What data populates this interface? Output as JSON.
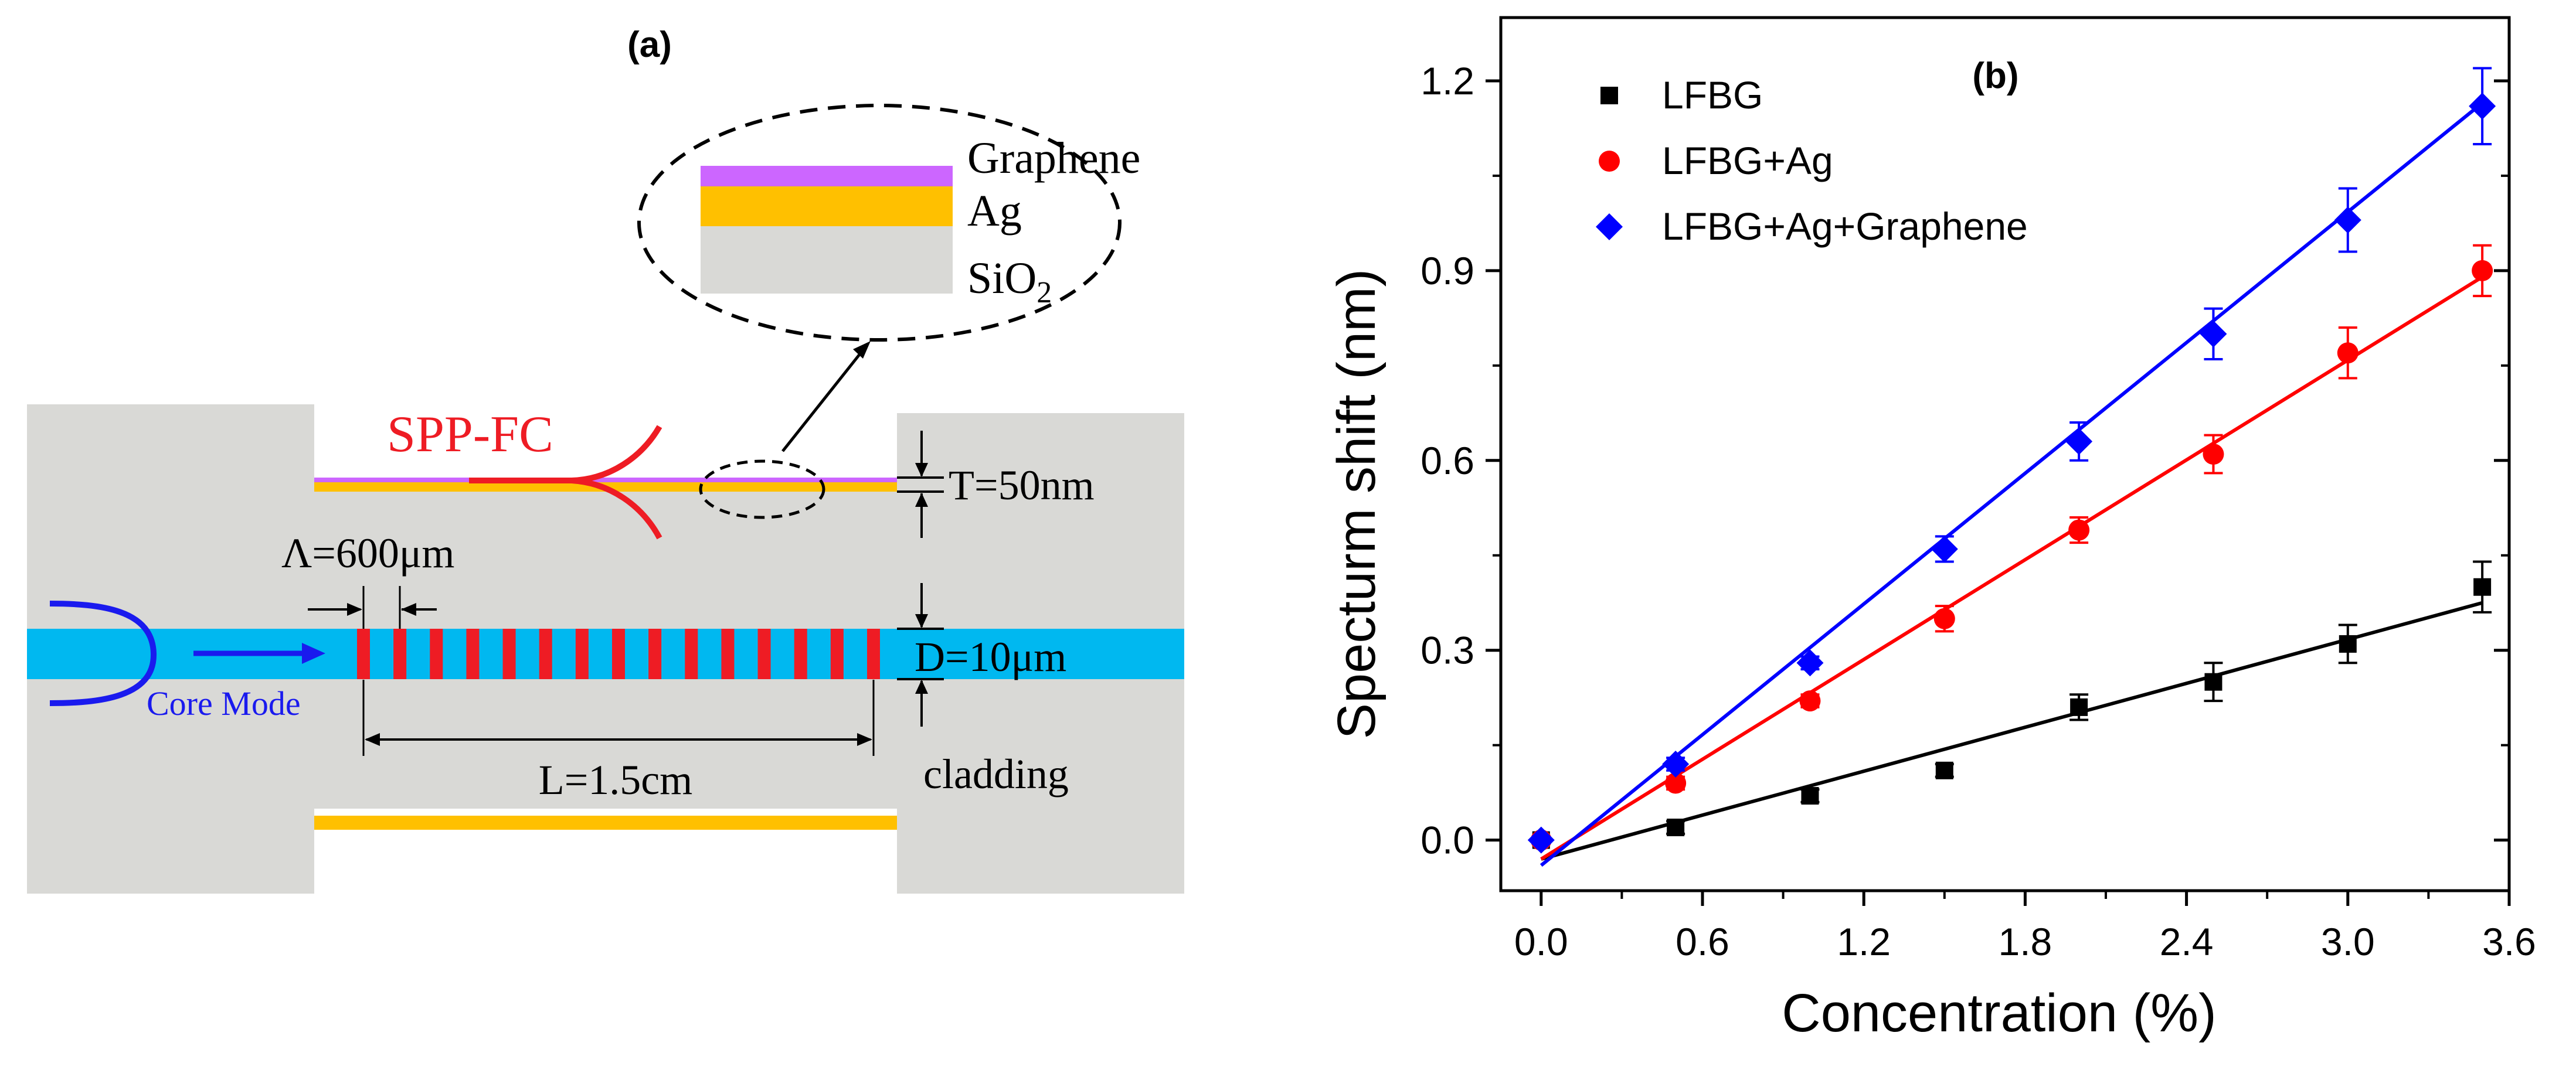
{
  "panel_a": {
    "panel_label": "(a)",
    "layers": {
      "graphene": "Graphene",
      "ag": "Ag",
      "sio2_base": "SiO",
      "sio2_sub": "2"
    },
    "spp_label": "SPP-FC",
    "thickness_label": "T=50nm",
    "period_label": "Λ=600μm",
    "core_label": "D=10μm",
    "core_mode_label": "Core Mode",
    "length_label": "L=1.5cm",
    "cladding_label": "cladding",
    "colors": {
      "cladding": "#d9d9d6",
      "core": "#00b8f0",
      "grating": "#ee1c24",
      "silver": "#ffc000",
      "graphene": "#cc66ff",
      "spp": "#ee1c24",
      "mode": "#1a1aee"
    }
  },
  "chart_data": {
    "type": "scatter",
    "panel_label": "(b)",
    "xlabel": "Concentration (%)",
    "ylabel": "Specturm shift (nm)",
    "xlim": [
      -0.15,
      3.6
    ],
    "ylim": [
      -0.08,
      1.3
    ],
    "xticks": [
      0.0,
      0.6,
      1.2,
      1.8,
      2.4,
      3.0,
      3.6
    ],
    "xtick_labels": [
      "0.0",
      "0.6",
      "1.2",
      "1.8",
      "2.4",
      "3.0",
      "3.6"
    ],
    "yticks": [
      0.0,
      0.3,
      0.6,
      0.9,
      1.2
    ],
    "ytick_labels": [
      "0.0",
      "0.3",
      "0.6",
      "0.9",
      "1.2"
    ],
    "legend_position": "top-left",
    "series": [
      {
        "name": "LFBG",
        "color": "#000000",
        "marker": "square",
        "x": [
          0,
          0.5,
          1.0,
          1.5,
          2.0,
          2.5,
          3.0,
          3.5
        ],
        "y": [
          0.0,
          0.02,
          0.07,
          0.11,
          0.21,
          0.25,
          0.31,
          0.4
        ],
        "err": [
          0.0,
          0.01,
          0.01,
          0.01,
          0.02,
          0.03,
          0.03,
          0.04
        ],
        "fit": [
          [
            0,
            -0.03
          ],
          [
            3.5,
            0.375
          ]
        ]
      },
      {
        "name": "LFBG+Ag",
        "color": "#ff0000",
        "marker": "circle",
        "x": [
          0,
          0.5,
          1.0,
          1.5,
          2.0,
          2.5,
          3.0,
          3.5
        ],
        "y": [
          0.0,
          0.09,
          0.22,
          0.35,
          0.49,
          0.61,
          0.77,
          0.9
        ],
        "err": [
          0.0,
          0.01,
          0.01,
          0.02,
          0.02,
          0.03,
          0.04,
          0.04
        ],
        "fit": [
          [
            0,
            -0.03
          ],
          [
            3.5,
            0.89
          ]
        ]
      },
      {
        "name": "LFBG+Ag+Graphene",
        "color": "#0000ff",
        "marker": "diamond",
        "x": [
          0,
          0.5,
          1.0,
          1.5,
          2.0,
          2.5,
          3.0,
          3.5
        ],
        "y": [
          0.0,
          0.12,
          0.28,
          0.46,
          0.63,
          0.8,
          0.98,
          1.16
        ],
        "err": [
          0.0,
          0.01,
          0.01,
          0.02,
          0.03,
          0.04,
          0.05,
          0.06
        ],
        "fit": [
          [
            0,
            -0.04
          ],
          [
            3.5,
            1.165
          ]
        ]
      }
    ]
  }
}
